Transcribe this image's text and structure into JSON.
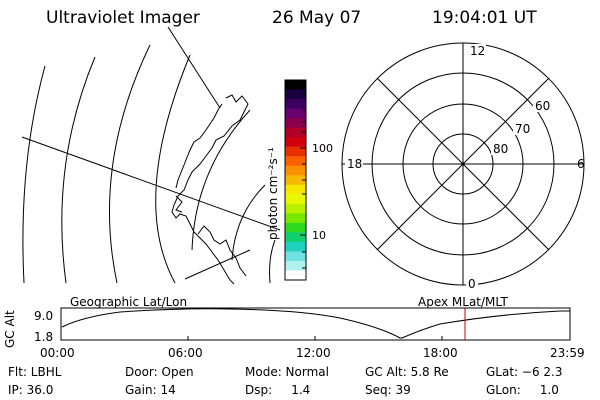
{
  "header": {
    "title": "Ultraviolet Imager",
    "date": "26 May 07",
    "time": "19:04:01 UT"
  },
  "colorbar": {
    "unit_label": "photon cm⁻²s⁻¹",
    "ticks": [
      "100",
      "10"
    ],
    "colors": [
      "#000000",
      "#1a0040",
      "#3a0060",
      "#6a0070",
      "#8c0050",
      "#b00028",
      "#d00010",
      "#e83000",
      "#f86000",
      "#f89000",
      "#f8b800",
      "#f8e800",
      "#e8f800",
      "#b8f000",
      "#78e800",
      "#30d820",
      "#10d070",
      "#20d0c0",
      "#70e0e0",
      "#b0f0f0",
      "#ffffff"
    ]
  },
  "polar": {
    "hour_labels": [
      "12",
      "18",
      "6",
      "0"
    ],
    "lat_labels": [
      "60",
      "70",
      "80"
    ]
  },
  "timeline": {
    "y_axis_label": "GC Alt",
    "y_values": [
      "9.0",
      "1.8"
    ],
    "left_label": "Geographic Lat/Lon",
    "right_label": "Apex MLat/MLT",
    "time_ticks": [
      "00:00",
      "06:00",
      "12:00",
      "18:00",
      "23:59"
    ],
    "curve_color": "#000000",
    "marker_color": "#cc0000"
  },
  "status": {
    "flt": "Flt: LBHL",
    "ip": "IP: 36.0",
    "door": "Door: Open",
    "gain": "Gain: 14",
    "mode": "Mode: Normal",
    "dsp": "Dsp:     1.4",
    "gc_alt": "GC Alt: 5.8 Re",
    "seq": "Seq: 39",
    "glat": "GLat: −6 2.3",
    "glon": "GLon:     1.0"
  }
}
